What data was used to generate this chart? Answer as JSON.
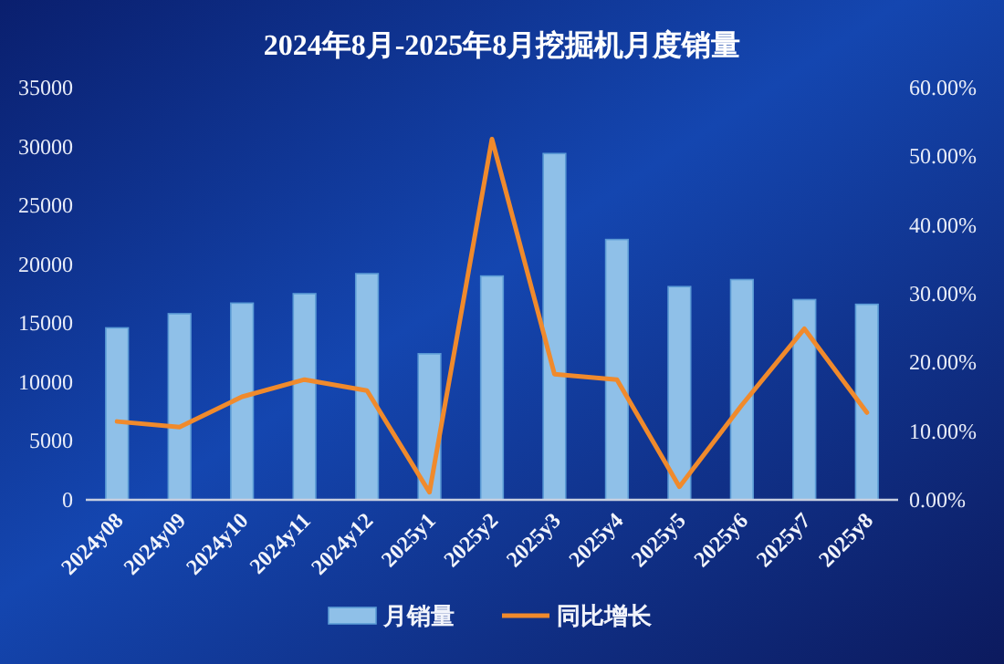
{
  "chart_data": {
    "type": "bar",
    "title": "2024年8月-2025年8月挖掘机月度销量",
    "categories": [
      "2024y08",
      "2024y09",
      "2024y10",
      "2024y11",
      "2024y12",
      "2025y1",
      "2025y2",
      "2025y3",
      "2025y4",
      "2025y5",
      "2025y6",
      "2025y7",
      "2025y8"
    ],
    "series": [
      {
        "name": "月销量",
        "color": "#8fc0e8",
        "values": [
          14600,
          15800,
          16700,
          17500,
          19200,
          12400,
          19000,
          29400,
          22100,
          18100,
          18700,
          17000,
          16600
        ]
      },
      {
        "name": "同比增长",
        "type": "line",
        "axis": "y2",
        "color": "#f08a2c",
        "values": [
          11.4,
          10.6,
          15.0,
          17.5,
          15.9,
          1.1,
          52.5,
          18.3,
          17.5,
          1.9,
          13.8,
          24.9,
          12.7
        ]
      }
    ],
    "ylim": [
      0,
      35000
    ],
    "yticks": [
      0,
      5000,
      10000,
      15000,
      20000,
      25000,
      30000,
      35000
    ],
    "y2lim": [
      0,
      60
    ],
    "y2ticks": [
      {
        "value": 0,
        "label": "0.00%"
      },
      {
        "value": 10,
        "label": "10.00%"
      },
      {
        "value": 20,
        "label": "20.00%"
      },
      {
        "value": 30,
        "label": "30.00%"
      },
      {
        "value": 40,
        "label": "40.00%"
      },
      {
        "value": 50,
        "label": "50.00%"
      },
      {
        "value": 60,
        "label": "60.00%"
      }
    ],
    "grid": false,
    "legend": "bottom",
    "marker": "none",
    "line_style": "solid"
  }
}
